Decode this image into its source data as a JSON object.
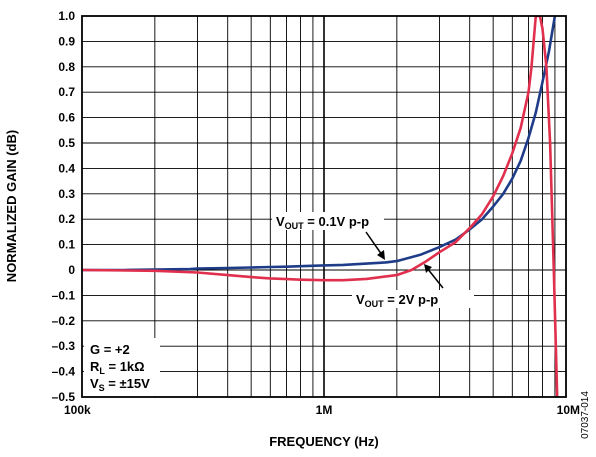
{
  "chart_data": {
    "type": "line",
    "xlabel": "FREQUENCY (Hz)",
    "ylabel": "NORMALIZED GAIN (dB)",
    "x_scale": "log",
    "xlim": [
      100000,
      10000000
    ],
    "ylim": [
      -0.5,
      1.0
    ],
    "grid": true,
    "x_tick_labels": [
      {
        "value": 100000,
        "label": "100k"
      },
      {
        "value": 1000000,
        "label": "1M"
      },
      {
        "value": 10000000,
        "label": "10M"
      }
    ],
    "y_tick_labels": [
      "1.0",
      "0.9",
      "0.8",
      "0.7",
      "0.6",
      "0.5",
      "0.4",
      "0.3",
      "0.2",
      "0.1",
      "0",
      "–0.1",
      "–0.2",
      "–0.3",
      "–0.4",
      "–0.5"
    ],
    "y_tick_values": [
      1.0,
      0.9,
      0.8,
      0.7,
      0.6,
      0.5,
      0.4,
      0.3,
      0.2,
      0.1,
      0,
      -0.1,
      -0.2,
      -0.3,
      -0.4,
      -0.5
    ],
    "series": [
      {
        "label": "VOUT = 0.1V p-p",
        "color": "#1f3c88",
        "x": [
          100000,
          150000,
          200000,
          280000,
          300000,
          400000,
          500000,
          600000,
          700000,
          800000,
          1000000,
          1200000,
          1500000,
          1800000,
          2000000,
          2500000,
          3000000,
          3500000,
          4000000,
          4500000,
          5000000,
          5500000,
          6000000,
          6500000,
          7000000,
          7500000,
          8000000,
          8500000,
          9000000
        ],
        "y": [
          0,
          0,
          0.002,
          0.004,
          0.006,
          0.008,
          0.01,
          0.012,
          0.013,
          0.015,
          0.018,
          0.02,
          0.025,
          0.03,
          0.035,
          0.06,
          0.09,
          0.12,
          0.16,
          0.2,
          0.25,
          0.3,
          0.36,
          0.43,
          0.52,
          0.62,
          0.74,
          0.86,
          1.0
        ]
      },
      {
        "label": "VOUT = 2V p-p",
        "color": "#e0304e",
        "x": [
          100000,
          200000,
          300000,
          400000,
          500000,
          600000,
          700000,
          800000,
          1000000,
          1200000,
          1500000,
          2000000,
          2300000,
          2600000,
          3000000,
          3500000,
          4000000,
          4500000,
          5000000,
          5500000,
          6000000,
          6500000,
          7000000,
          7200000,
          7500000,
          7800000,
          8000000,
          8300000,
          8600000,
          8900000,
          9200000,
          9400000
        ],
        "y": [
          0,
          -0.003,
          -0.01,
          -0.02,
          -0.028,
          -0.033,
          -0.036,
          -0.038,
          -0.04,
          -0.04,
          -0.035,
          -0.02,
          0,
          0.03,
          0.07,
          0.11,
          0.165,
          0.22,
          0.29,
          0.37,
          0.46,
          0.56,
          0.7,
          0.8,
          1.0,
          1.0,
          0.95,
          0.8,
          0.5,
          0,
          -0.5,
          -0.6
        ]
      }
    ],
    "annotations": {
      "g": "G = +2",
      "rl_main": "R",
      "rl_sub": "L",
      "rl_rest": " = 1kΩ",
      "vs_main": "V",
      "vs_sub": "S",
      "vs_rest": " = ±15V",
      "v01_main": "V",
      "v01_sub": "OUT",
      "v01_rest": " = 0.1V p-p",
      "v2_main": "V",
      "v2_sub": "OUT",
      "v2_rest": " = 2V p-p"
    },
    "figure_code": "07037-014"
  }
}
